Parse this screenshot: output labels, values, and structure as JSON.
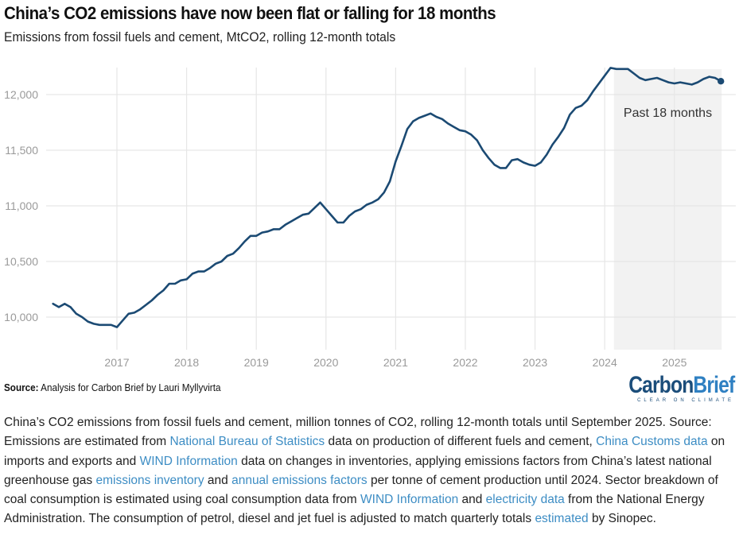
{
  "header": {
    "title": "China’s CO2 emissions have now been flat or falling for 18 months",
    "subtitle": "Emissions from fossil fuels and cement, MtCO2, rolling 12-month totals"
  },
  "chart_data": {
    "type": "line",
    "title": "China’s CO2 emissions have now been flat or falling for 18 months",
    "subtitle": "Emissions from fossil fuels and cement, MtCO2, rolling 12-month totals",
    "xlabel": "",
    "ylabel": "MtCO2",
    "x_start": "2016-02",
    "x_end": "2025-09",
    "frequency": "monthly",
    "x_ticks": [
      "2017",
      "2018",
      "2019",
      "2020",
      "2021",
      "2022",
      "2023",
      "2024",
      "2025"
    ],
    "y_ticks": [
      10000,
      10500,
      11000,
      11500,
      12000
    ],
    "y_tick_labels": [
      "10,000",
      "10,500",
      "11,000",
      "11,500",
      "12,000"
    ],
    "ylim": [
      9800,
      12230
    ],
    "grid": true,
    "series": [
      {
        "name": "China CO2 emissions (rolling 12-month total)",
        "color": "#1b4a73",
        "end_marker": true,
        "values": [
          10120,
          10090,
          10120,
          10090,
          10030,
          10000,
          9960,
          9940,
          9930,
          9930,
          9930,
          9910,
          9970,
          10030,
          10040,
          10070,
          10110,
          10150,
          10200,
          10240,
          10300,
          10300,
          10330,
          10340,
          10390,
          10410,
          10410,
          10440,
          10480,
          10500,
          10550,
          10570,
          10620,
          10680,
          10730,
          10730,
          10760,
          10770,
          10790,
          10790,
          10830,
          10860,
          10890,
          10920,
          10930,
          10980,
          11030,
          10970,
          10910,
          10850,
          10850,
          10910,
          10950,
          10970,
          11010,
          11030,
          11060,
          11120,
          11220,
          11400,
          11540,
          11690,
          11760,
          11790,
          11810,
          11830,
          11800,
          11780,
          11740,
          11710,
          11680,
          11670,
          11640,
          11590,
          11500,
          11430,
          11370,
          11340,
          11340,
          11410,
          11420,
          11390,
          11370,
          11360,
          11390,
          11460,
          11550,
          11620,
          11700,
          11820,
          11880,
          11900,
          11950,
          12030,
          12100,
          12170,
          12240,
          12230,
          12230,
          12230,
          12190,
          12150,
          12130,
          12140,
          12150,
          12130,
          12110,
          12100,
          12110,
          12100,
          12090,
          12110,
          12140,
          12160,
          12150,
          12120
        ]
      }
    ],
    "shaded_region": {
      "label": "Past 18 months",
      "from": "2024-03",
      "to": "2025-09",
      "color": "#f2f2f2"
    },
    "annotations": [
      "Past 18 months"
    ]
  },
  "footer": {
    "source_label": "Source:",
    "source_text": " Analysis for Carbon Brief by Lauri Myllyvirta",
    "logo_carbon": "Carbon",
    "logo_brief": "Brief",
    "logo_tagline": "CLEAR ON CLIMATE"
  },
  "caption": {
    "parts": [
      {
        "text": "China’s CO2 emissions from fossil fuels and cement, million tonnes of CO2, rolling 12-month totals until September 2025. Source: Emissions are estimated from "
      },
      {
        "text": "National Bureau of Statistics",
        "link": true
      },
      {
        "text": " data on production of different fuels and cement, "
      },
      {
        "text": "China Customs data",
        "link": true
      },
      {
        "text": " on imports and exports and "
      },
      {
        "text": "WIND Information",
        "link": true
      },
      {
        "text": " data on changes in inventories, applying emissions factors from China’s latest national greenhouse gas "
      },
      {
        "text": "emissions inventory",
        "link": true
      },
      {
        "text": " and "
      },
      {
        "text": "annual emissions factors",
        "link": true
      },
      {
        "text": " per tonne of cement production until 2024. Sector breakdown of coal consumption is estimated using coal consumption data from "
      },
      {
        "text": "WIND Information",
        "link": true
      },
      {
        "text": " and "
      },
      {
        "text": "electricity data",
        "link": true
      },
      {
        "text": " from the National Energy Administration. The consumption of petrol, diesel and jet fuel is adjusted to match quarterly totals "
      },
      {
        "text": "estimated",
        "link": true
      },
      {
        "text": " by Sinopec."
      }
    ]
  }
}
